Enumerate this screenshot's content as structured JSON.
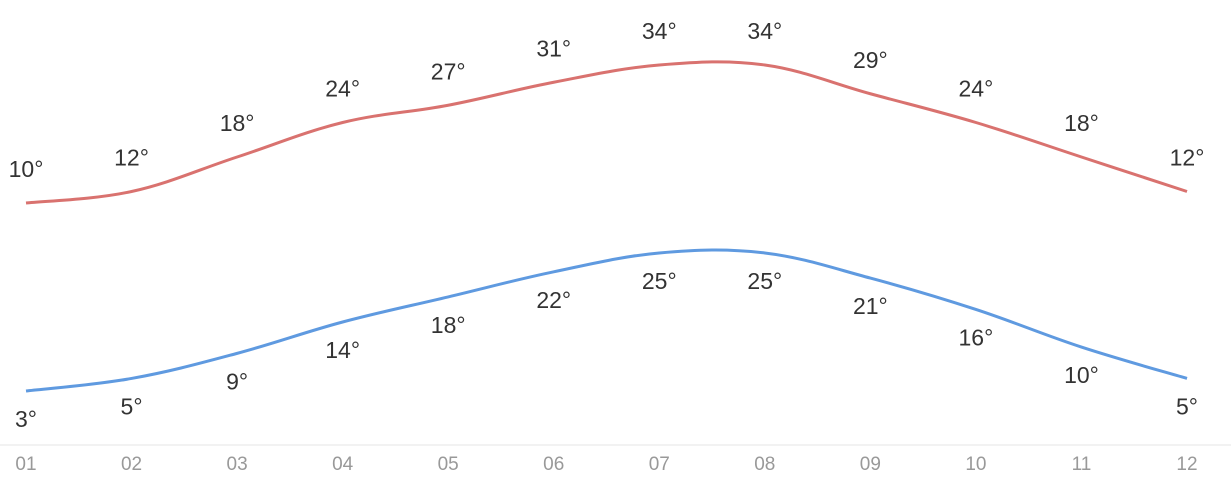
{
  "chart_data": {
    "type": "line",
    "categories": [
      "01",
      "02",
      "03",
      "04",
      "05",
      "06",
      "07",
      "08",
      "09",
      "10",
      "11",
      "12"
    ],
    "series": [
      {
        "color": "#d9726f",
        "values": [
          10,
          12,
          18,
          24,
          27,
          31,
          34,
          34,
          29,
          24,
          18,
          12
        ],
        "value_labels": [
          "10°",
          "12°",
          "18°",
          "24°",
          "27°",
          "31°",
          "34°",
          "34°",
          "29°",
          "24°",
          "18°",
          "12°"
        ]
      },
      {
        "color": "#5f9ae0",
        "values": [
          3,
          5,
          9,
          14,
          18,
          22,
          25,
          25,
          21,
          16,
          10,
          5
        ],
        "value_labels": [
          "3°",
          "5°",
          "9°",
          "14°",
          "18°",
          "22°",
          "25°",
          "25°",
          "21°",
          "16°",
          "10°",
          "5°"
        ]
      }
    ]
  }
}
